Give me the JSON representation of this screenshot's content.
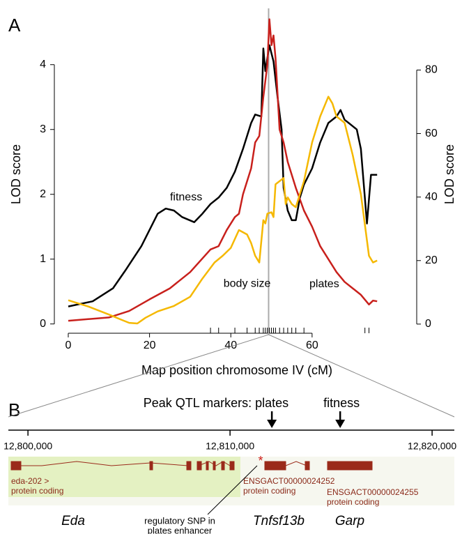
{
  "chart_data": [
    {
      "type": "line",
      "panel": "A",
      "xlabel": "Map position chromosome IV (cM)",
      "ylabel": "LOD score",
      "y2label": "LOD score",
      "xlim": [
        -2,
        83
      ],
      "xticks": [
        0,
        20,
        40,
        60
      ],
      "ylim": [
        -0.1,
        4.75
      ],
      "yticks": [
        0,
        1,
        2,
        3,
        4
      ],
      "y2lim": [
        -2,
        97
      ],
      "y2ticks": [
        0,
        20,
        40,
        60,
        80
      ],
      "peak_position": 49.3,
      "marker_positions": [
        35,
        37,
        41,
        44,
        46,
        47,
        48,
        48.5,
        49,
        49.5,
        50,
        50.5,
        51,
        52,
        53,
        54,
        55,
        56,
        58,
        73,
        74
      ],
      "series": [
        {
          "name": "fitness",
          "color": "#000000",
          "label_at": [
            29,
            1.95
          ],
          "x": [
            0,
            6,
            11,
            14,
            18,
            22,
            24,
            26,
            28,
            31,
            33,
            35,
            37,
            39,
            41,
            43,
            45,
            46,
            47.5,
            48,
            48.5,
            49.5,
            50.5,
            51.5,
            52.5,
            53,
            54,
            55,
            56,
            57,
            58,
            60,
            62,
            64,
            66,
            67,
            68,
            69,
            71,
            72,
            73.5,
            74.5,
            76
          ],
          "values": [
            0.27,
            0.35,
            0.55,
            0.82,
            1.2,
            1.7,
            1.78,
            1.75,
            1.65,
            1.57,
            1.7,
            1.85,
            1.95,
            2.1,
            2.35,
            2.7,
            3.1,
            3.23,
            3.2,
            4.25,
            3.9,
            4.3,
            4.05,
            3.5,
            3.0,
            2.1,
            1.75,
            1.6,
            1.6,
            1.95,
            2.15,
            2.4,
            2.8,
            3.1,
            3.2,
            3.3,
            3.15,
            3.1,
            3.0,
            2.7,
            1.55,
            2.3,
            2.3
          ]
        },
        {
          "name": "body size",
          "color": "#c8201c",
          "label_at": [
            44,
            0.62
          ],
          "x": [
            0,
            10,
            15,
            20,
            25,
            30,
            35,
            37,
            39,
            41,
            42,
            43,
            45,
            46,
            47,
            48,
            49,
            49.5,
            50,
            50.5,
            51,
            52,
            53,
            54,
            56,
            58,
            60,
            62,
            64,
            66,
            68,
            70,
            72,
            74,
            75,
            76
          ],
          "values": [
            0.05,
            0.1,
            0.2,
            0.38,
            0.55,
            0.8,
            1.15,
            1.2,
            1.45,
            1.65,
            1.7,
            2.0,
            2.4,
            2.8,
            2.9,
            3.5,
            4.0,
            4.7,
            4.3,
            4.45,
            4.1,
            3.0,
            2.8,
            2.5,
            2.1,
            1.75,
            1.5,
            1.2,
            1.0,
            0.8,
            0.65,
            0.55,
            0.45,
            0.3,
            0.36,
            0.35
          ]
        },
        {
          "name": "plates",
          "color": "#f5b800",
          "axis": "y2",
          "label_at": [
            63,
            12.5
          ],
          "x": [
            0,
            5,
            10,
            13,
            15,
            17,
            19,
            22,
            26,
            30,
            33,
            36,
            38,
            40,
            42,
            44,
            45,
            46,
            47,
            48,
            48.5,
            49,
            50,
            50.5,
            51,
            52,
            53,
            53.5,
            54,
            55,
            56,
            58,
            60,
            62,
            64,
            65,
            66,
            68,
            70,
            72,
            74,
            75,
            76
          ],
          "values": [
            7.5,
            5.5,
            3,
            1.4,
            0.4,
            0.2,
            2,
            4,
            5.7,
            8.6,
            14.3,
            19.4,
            21.5,
            24,
            29.6,
            28.2,
            25.5,
            21.5,
            19.4,
            32.7,
            31.7,
            34.8,
            35.2,
            33.7,
            44,
            45,
            46,
            37.8,
            39.9,
            37.8,
            36.8,
            45,
            57.2,
            65.4,
            71.6,
            69.5,
            65.4,
            63.4,
            53.2,
            40.9,
            21.5,
            19.4,
            20
          ]
        }
      ]
    },
    {
      "type": "genome-track",
      "panel": "B",
      "xlim": [
        12799030,
        12821100
      ],
      "xticks": [
        {
          "value": 12800000,
          "label": "12,800,000"
        },
        {
          "value": 12810000,
          "label": "12,810,000"
        },
        {
          "value": 12820000,
          "label": "12,820,000"
        }
      ],
      "arrows": [
        {
          "label": "Peak QTL markers: plates",
          "x": 12812070
        },
        {
          "label": "fitness",
          "x": 12815450
        }
      ],
      "genes": [
        {
          "transcript": "eda-202 >",
          "biotype": "protein coding",
          "name": "Eda"
        },
        {
          "transcript": "ENSGACT00000024252",
          "biotype": "protein coding",
          "name": "Tnfsf13b"
        },
        {
          "transcript": "ENSGACT00000024255",
          "biotype": "protein coding",
          "name": "Garp"
        }
      ],
      "snp_mark": "*",
      "snp_note": [
        "regulatory SNP in",
        "plates enhancer"
      ]
    }
  ]
}
